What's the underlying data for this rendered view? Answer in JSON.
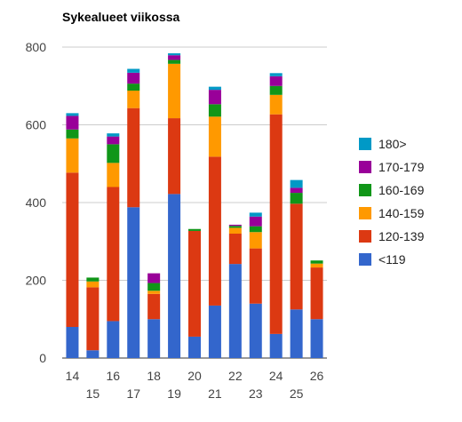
{
  "chart_data": {
    "type": "bar",
    "stacked": true,
    "title": "Sykealueet viikossa",
    "xlabel": "",
    "ylabel": "",
    "ylim": [
      0,
      800
    ],
    "yticks": [
      0,
      200,
      400,
      600,
      800
    ],
    "grid": true,
    "legend_position": "right",
    "categories": [
      "14",
      "15",
      "16",
      "17",
      "18",
      "19",
      "20",
      "21",
      "22",
      "23",
      "24",
      "25",
      "26"
    ],
    "series": [
      {
        "name": "<119",
        "color": "#3366cc",
        "values": [
          80,
          20,
          95,
          388,
          100,
          422,
          55,
          135,
          242,
          140,
          62,
          125,
          100
        ]
      },
      {
        "name": "120-139",
        "color": "#dc3912",
        "values": [
          397,
          162,
          345,
          255,
          65,
          195,
          272,
          383,
          78,
          142,
          565,
          272,
          133
        ]
      },
      {
        "name": "140-159",
        "color": "#ff9900",
        "values": [
          88,
          15,
          62,
          45,
          8,
          140,
          0,
          103,
          15,
          42,
          50,
          0,
          10
        ]
      },
      {
        "name": "160-169",
        "color": "#109618",
        "values": [
          23,
          10,
          48,
          18,
          20,
          10,
          5,
          32,
          5,
          15,
          23,
          28,
          8
        ]
      },
      {
        "name": "170-179",
        "color": "#990099",
        "values": [
          35,
          0,
          20,
          28,
          25,
          12,
          0,
          37,
          3,
          25,
          25,
          13,
          0
        ]
      },
      {
        "name": "180>",
        "color": "#0099c6",
        "values": [
          7,
          0,
          8,
          10,
          0,
          5,
          0,
          8,
          0,
          10,
          8,
          20,
          0
        ]
      }
    ]
  }
}
